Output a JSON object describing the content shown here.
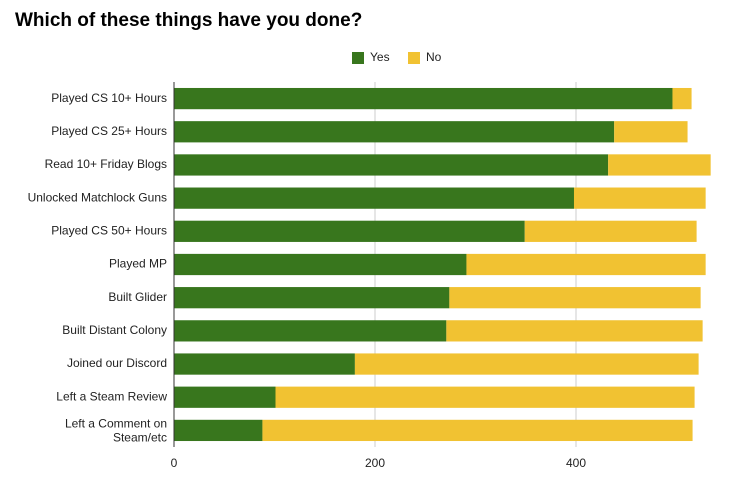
{
  "chart_data": {
    "type": "bar",
    "orientation": "horizontal",
    "stacked": true,
    "title": "Which of these things have you done?",
    "categories": [
      "Played CS 10+ Hours",
      "Played CS 25+ Hours",
      "Read 10+ Friday Blogs",
      "Unlocked Matchlock Guns",
      "Played CS 50+ Hours",
      "Played MP",
      "Built Glider",
      "Built Distant Colony",
      "Joined our Discord",
      "Left a Steam Review",
      "Left a Comment on Steam/etc"
    ],
    "series": [
      {
        "name": "Yes",
        "color": "#38761d",
        "values": [
          496,
          438,
          432,
          398,
          349,
          291,
          274,
          271,
          180,
          101,
          88
        ]
      },
      {
        "name": "No",
        "color": "#f1c232",
        "values": [
          19,
          73,
          102,
          131,
          171,
          238,
          250,
          255,
          342,
          417,
          428
        ]
      }
    ],
    "xlim": [
      0,
      530
    ],
    "xticks": [
      0,
      200,
      400
    ],
    "xlabel": "",
    "ylabel": "",
    "grid": true,
    "legend_position": "top-center"
  }
}
